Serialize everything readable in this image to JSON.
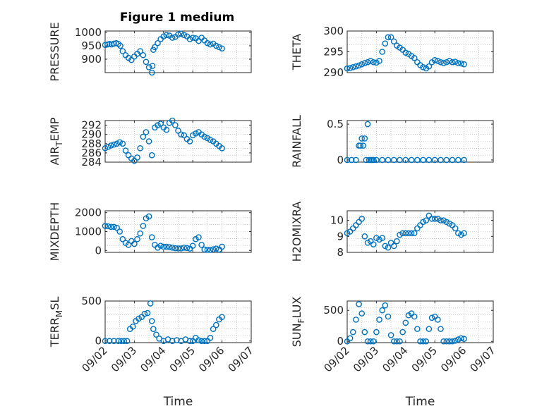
{
  "figure": {
    "title": "Figure 1 medium"
  },
  "style": {
    "marker_color": "#0072BD",
    "axis_color": "#262626",
    "grid_color": "#b0b0b0"
  },
  "chart_data": [
    {
      "type": "scatter",
      "ylabel": "PRESSURE",
      "ylim": [
        850,
        1005
      ],
      "yticks": [
        1000,
        950,
        900
      ],
      "xlim": [
        0,
        5
      ],
      "xticks": [
        "09/02",
        "09/03",
        "09/04",
        "09/05",
        "09/06",
        "09/07"
      ],
      "xlabel": "",
      "grid": true,
      "series": [
        {
          "x": [
            0.0,
            0.08,
            0.15,
            0.22,
            0.3,
            0.38,
            0.45,
            0.52,
            0.6,
            0.7,
            0.8,
            0.9,
            1.0,
            1.1,
            1.2,
            1.3,
            1.4,
            1.5,
            1.6,
            1.62,
            1.65,
            1.7,
            1.8,
            1.9,
            2.0,
            2.1,
            2.2,
            2.3,
            2.4,
            2.5,
            2.6,
            2.7,
            2.8,
            2.9,
            3.0,
            3.1,
            3.2,
            3.3,
            3.4,
            3.5,
            3.6,
            3.7,
            3.8,
            3.9,
            4.0
          ],
          "y": [
            953,
            955,
            957,
            955,
            958,
            960,
            957,
            950,
            930,
            915,
            905,
            897,
            910,
            920,
            930,
            915,
            890,
            870,
            850,
            875,
            935,
            945,
            960,
            975,
            985,
            990,
            988,
            980,
            983,
            992,
            995,
            990,
            985,
            975,
            980,
            978,
            968,
            980,
            970,
            960,
            955,
            958,
            950,
            945,
            940
          ]
        }
      ]
    },
    {
      "type": "scatter",
      "ylabel": "THETA",
      "ylim": [
        290,
        300
      ],
      "yticks": [
        300,
        295,
        290
      ],
      "xlim": [
        0,
        5
      ],
      "xticks": [
        "09/02",
        "09/03",
        "09/04",
        "09/05",
        "09/06",
        "09/07"
      ],
      "xlabel": "",
      "grid": true,
      "series": [
        {
          "x": [
            0.0,
            0.1,
            0.2,
            0.3,
            0.4,
            0.5,
            0.6,
            0.7,
            0.8,
            0.9,
            1.0,
            1.1,
            1.2,
            1.3,
            1.4,
            1.5,
            1.6,
            1.7,
            1.8,
            1.9,
            2.0,
            2.1,
            2.2,
            2.3,
            2.4,
            2.5,
            2.6,
            2.7,
            2.8,
            2.9,
            3.0,
            3.1,
            3.2,
            3.3,
            3.4,
            3.5,
            3.6,
            3.7,
            3.8,
            3.9,
            4.0
          ],
          "y": [
            291.0,
            291.1,
            291.3,
            291.5,
            291.7,
            292.0,
            292.3,
            292.5,
            292.8,
            292.5,
            292.4,
            292.8,
            295.0,
            297.0,
            298.5,
            298.5,
            297.5,
            296.5,
            296.0,
            295.5,
            294.8,
            294.5,
            294.0,
            293.5,
            292.5,
            291.8,
            291.3,
            291.0,
            291.5,
            292.5,
            293.0,
            292.8,
            292.5,
            292.3,
            292.5,
            292.8,
            292.5,
            292.6,
            292.3,
            292.2,
            292.0
          ]
        }
      ]
    },
    {
      "type": "scatter",
      "ylabel": "AIR_TEMP",
      "ylim": [
        284,
        293
      ],
      "yticks": [
        292,
        290,
        288,
        286,
        284
      ],
      "xlim": [
        0,
        5
      ],
      "xticks": [
        "09/02",
        "09/03",
        "09/04",
        "09/05",
        "09/06",
        "09/07"
      ],
      "xlabel": "",
      "grid": true,
      "series": [
        {
          "x": [
            0.0,
            0.1,
            0.2,
            0.3,
            0.4,
            0.5,
            0.6,
            0.7,
            0.8,
            0.9,
            1.0,
            1.1,
            1.2,
            1.3,
            1.4,
            1.5,
            1.6,
            1.7,
            1.8,
            1.9,
            2.0,
            2.1,
            2.2,
            2.3,
            2.4,
            2.5,
            2.6,
            2.7,
            2.8,
            2.9,
            3.0,
            3.1,
            3.2,
            3.3,
            3.4,
            3.5,
            3.6,
            3.7,
            3.8,
            3.9,
            4.0
          ],
          "y": [
            287.0,
            287.3,
            287.6,
            287.8,
            288.0,
            288.3,
            288.0,
            286.5,
            285.5,
            284.8,
            284.3,
            285.0,
            287.0,
            289.5,
            290.5,
            288.5,
            285.5,
            291.5,
            292.0,
            292.3,
            291.5,
            291.0,
            292.5,
            293.0,
            292.0,
            290.8,
            290.0,
            289.8,
            289.0,
            288.5,
            289.8,
            290.2,
            290.5,
            290.0,
            289.5,
            289.2,
            288.8,
            288.5,
            288.0,
            287.5,
            287.0
          ]
        }
      ]
    },
    {
      "type": "scatter",
      "ylabel": "RAINFALL",
      "ylim": [
        -0.03,
        0.55
      ],
      "yticks": [
        0.5,
        0
      ],
      "xlim": [
        0,
        5
      ],
      "xticks": [
        "09/02",
        "09/03",
        "09/04",
        "09/05",
        "09/06",
        "09/07"
      ],
      "xlabel": "",
      "grid": true,
      "series": [
        {
          "x": [
            0.0,
            0.15,
            0.3,
            0.4,
            0.45,
            0.5,
            0.55,
            0.6,
            0.65,
            0.7,
            0.75,
            0.8,
            0.85,
            0.9,
            1.0,
            1.2,
            1.4,
            1.6,
            1.8,
            2.0,
            2.2,
            2.4,
            2.6,
            2.8,
            3.0,
            3.2,
            3.4,
            3.6,
            3.8,
            4.0
          ],
          "y": [
            0,
            0,
            0,
            0.2,
            0.2,
            0.3,
            0.2,
            0.3,
            0,
            0.5,
            0,
            0,
            0,
            0,
            0,
            0,
            0,
            0,
            0,
            0,
            0,
            0,
            0,
            0,
            0,
            0,
            0,
            0,
            0,
            0
          ]
        }
      ]
    },
    {
      "type": "scatter",
      "ylabel": "MIXDEPTH",
      "ylim": [
        -100,
        2100
      ],
      "yticks": [
        2000,
        1000,
        0
      ],
      "xlim": [
        0,
        5
      ],
      "xticks": [
        "09/02",
        "09/03",
        "09/04",
        "09/05",
        "09/06",
        "09/07"
      ],
      "xlabel": "",
      "grid": true,
      "series": [
        {
          "x": [
            0.0,
            0.1,
            0.2,
            0.3,
            0.4,
            0.5,
            0.6,
            0.7,
            0.8,
            0.9,
            1.0,
            1.1,
            1.2,
            1.3,
            1.4,
            1.5,
            1.6,
            1.7,
            1.8,
            1.9,
            2.0,
            2.1,
            2.2,
            2.3,
            2.4,
            2.5,
            2.6,
            2.7,
            2.8,
            2.9,
            3.0,
            3.1,
            3.2,
            3.3,
            3.4,
            3.5,
            3.6,
            3.7,
            3.8,
            3.9,
            4.0
          ],
          "y": [
            1300,
            1280,
            1250,
            1250,
            1200,
            1000,
            600,
            400,
            300,
            500,
            350,
            600,
            900,
            1300,
            1700,
            1800,
            700,
            300,
            150,
            250,
            200,
            200,
            180,
            150,
            120,
            110,
            110,
            150,
            130,
            100,
            250,
            600,
            700,
            300,
            50,
            40,
            30,
            60,
            100,
            50,
            200
          ]
        }
      ]
    },
    {
      "type": "scatter",
      "ylabel": "H2OMIXRA",
      "ylim": [
        8,
        10.6
      ],
      "yticks": [
        10,
        9,
        8
      ],
      "xlim": [
        0,
        5
      ],
      "xticks": [
        "09/02",
        "09/03",
        "09/04",
        "09/05",
        "09/06",
        "09/07"
      ],
      "xlabel": "",
      "grid": true,
      "series": [
        {
          "x": [
            0.0,
            0.1,
            0.2,
            0.3,
            0.4,
            0.5,
            0.6,
            0.7,
            0.8,
            0.9,
            1.0,
            1.1,
            1.2,
            1.3,
            1.4,
            1.5,
            1.6,
            1.7,
            1.8,
            1.9,
            2.0,
            2.1,
            2.2,
            2.3,
            2.4,
            2.5,
            2.6,
            2.7,
            2.8,
            2.9,
            3.0,
            3.1,
            3.2,
            3.3,
            3.4,
            3.5,
            3.6,
            3.7,
            3.8,
            3.9,
            4.0
          ],
          "y": [
            9.2,
            9.3,
            9.5,
            9.7,
            9.9,
            10.1,
            9.0,
            8.6,
            8.7,
            8.5,
            8.9,
            8.8,
            8.9,
            8.4,
            8.3,
            8.6,
            8.4,
            8.7,
            9.1,
            9.2,
            9.2,
            9.2,
            9.2,
            9.2,
            9.5,
            9.7,
            9.9,
            10.0,
            10.3,
            10.1,
            10.1,
            10.1,
            10.0,
            10.0,
            9.9,
            9.8,
            9.7,
            9.5,
            9.2,
            9.1,
            9.2
          ]
        }
      ]
    },
    {
      "type": "scatter",
      "ylabel": "TERR_MSL",
      "ylim": [
        -20,
        500
      ],
      "yticks": [
        500,
        0
      ],
      "xlim": [
        0,
        5
      ],
      "xticks": [
        "09/02",
        "09/03",
        "09/04",
        "09/05",
        "09/06",
        "09/07"
      ],
      "xlabel": "Time",
      "grid": true,
      "series": [
        {
          "x": [
            0.0,
            0.15,
            0.3,
            0.45,
            0.55,
            0.65,
            0.75,
            0.85,
            0.95,
            1.05,
            1.15,
            1.25,
            1.35,
            1.45,
            1.55,
            1.6,
            1.65,
            1.75,
            1.85,
            2.0,
            2.15,
            2.3,
            2.45,
            2.6,
            2.75,
            2.9,
            3.0,
            3.1,
            3.2,
            3.3,
            3.4,
            3.5,
            3.6,
            3.7,
            3.8,
            3.9,
            4.0
          ],
          "y": [
            0,
            0,
            0,
            0,
            0,
            0,
            0,
            150,
            180,
            250,
            280,
            300,
            340,
            350,
            470,
            250,
            150,
            80,
            30,
            0,
            20,
            0,
            10,
            0,
            20,
            0,
            0,
            40,
            10,
            0,
            0,
            0,
            40,
            150,
            200,
            270,
            300
          ]
        }
      ]
    },
    {
      "type": "scatter",
      "ylabel": "SUN_FLUX",
      "ylim": [
        -20,
        650
      ],
      "yticks": [
        500,
        0
      ],
      "xlim": [
        0,
        5
      ],
      "xticks": [
        "09/02",
        "09/03",
        "09/04",
        "09/05",
        "09/06",
        "09/07"
      ],
      "xlabel": "Time",
      "grid": true,
      "series": [
        {
          "x": [
            0.0,
            0.1,
            0.2,
            0.3,
            0.4,
            0.5,
            0.6,
            0.7,
            0.8,
            0.9,
            1.0,
            1.1,
            1.2,
            1.3,
            1.4,
            1.5,
            1.6,
            1.7,
            1.8,
            1.9,
            2.0,
            2.1,
            2.2,
            2.3,
            2.4,
            2.5,
            2.6,
            2.7,
            2.8,
            2.9,
            3.0,
            3.1,
            3.2,
            3.3,
            3.4,
            3.5,
            3.6,
            3.7,
            3.8,
            3.9,
            4.0
          ],
          "y": [
            0,
            50,
            150,
            350,
            600,
            450,
            150,
            0,
            0,
            0,
            150,
            350,
            500,
            580,
            400,
            100,
            0,
            0,
            0,
            150,
            300,
            420,
            450,
            400,
            200,
            0,
            0,
            0,
            200,
            380,
            400,
            350,
            200,
            0,
            0,
            0,
            0,
            10,
            30,
            50,
            40
          ]
        }
      ]
    }
  ]
}
